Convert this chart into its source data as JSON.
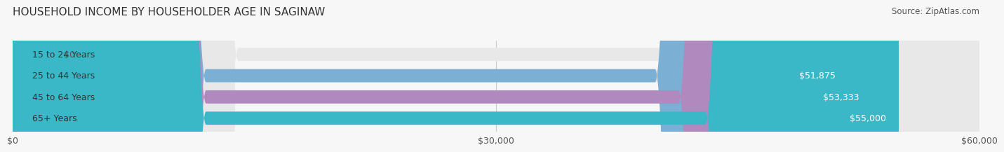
{
  "title": "HOUSEHOLD INCOME BY HOUSEHOLDER AGE IN SAGINAW",
  "source": "Source: ZipAtlas.com",
  "categories": [
    "15 to 24 Years",
    "25 to 44 Years",
    "45 to 64 Years",
    "65+ Years"
  ],
  "values": [
    0,
    51875,
    53333,
    55000
  ],
  "bar_colors": [
    "#f4a0a0",
    "#7bafd4",
    "#b08abf",
    "#3ab8c8"
  ],
  "bar_bg_color": "#e8e8e8",
  "value_labels": [
    "$0",
    "$51,875",
    "$53,333",
    "$55,000"
  ],
  "xlim": [
    0,
    60000
  ],
  "xticks": [
    0,
    30000,
    60000
  ],
  "xtick_labels": [
    "$0",
    "$30,000",
    "$60,000"
  ],
  "background_color": "#f7f7f7",
  "title_fontsize": 11,
  "source_fontsize": 8.5,
  "label_fontsize": 9,
  "tick_fontsize": 9
}
